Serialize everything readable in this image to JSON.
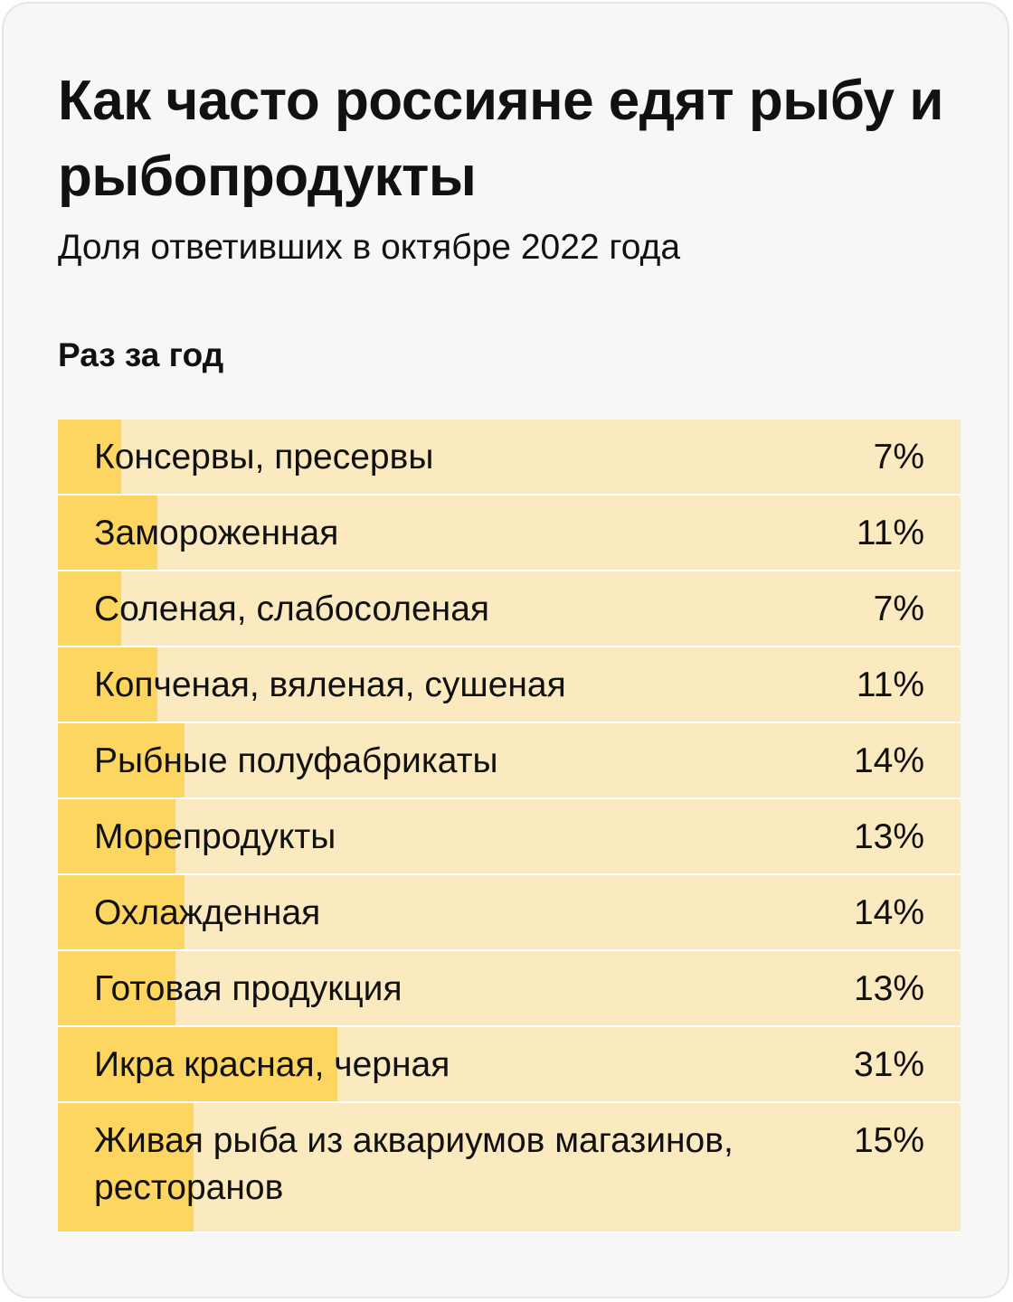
{
  "chart_data": {
    "type": "bar",
    "orientation": "horizontal",
    "title": "Как часто россияне едят рыбу и рыбопродукты",
    "subtitle": "Доля ответивших в октябре 2022 года",
    "section": "Раз за год",
    "categories": [
      "Консервы, пресервы",
      "Замороженная",
      "Соленая, слабосоленая",
      "Копченая, вяленая, сушеная",
      "Рыбные полуфабрикаты",
      "Морепродукты",
      "Охлажденная",
      "Готовая продукция",
      "Икра красная, черная",
      "Живая рыба из аквариумов магазинов, ресторанов"
    ],
    "values": [
      7,
      11,
      7,
      11,
      14,
      13,
      14,
      13,
      31,
      15
    ],
    "value_labels": [
      "7%",
      "11%",
      "7%",
      "11%",
      "14%",
      "13%",
      "14%",
      "13%",
      "31%",
      "15%"
    ],
    "xlim": [
      0,
      100
    ],
    "unit": "%",
    "grid": false,
    "legend": "none",
    "colors": {
      "bar": "#fdd561",
      "track": "#fbe9bf",
      "background": "#f7f7f7",
      "text": "#111111"
    }
  }
}
